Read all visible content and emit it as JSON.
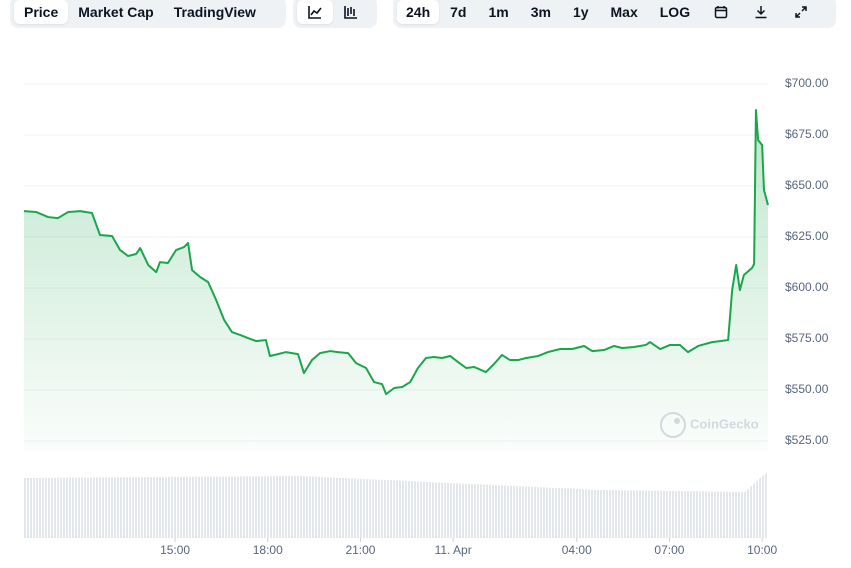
{
  "toolbar": {
    "tabs": [
      "Price",
      "Market Cap",
      "TradingView"
    ],
    "ranges": [
      "24h",
      "7d",
      "1m",
      "3m",
      "1y",
      "Max",
      "LOG"
    ]
  },
  "chart_data": {
    "type": "line",
    "watermark": "CoinGecko",
    "color": "#1aa64a",
    "x": [
      10.11,
      10.5,
      10.89,
      11.21,
      11.54,
      11.93,
      12.31,
      12.57,
      12.96,
      13.22,
      13.48,
      13.74,
      13.87,
      14.13,
      14.39,
      14.51,
      14.77,
      15.03,
      15.29,
      15.42,
      15.55,
      15.81,
      16.07,
      16.33,
      16.59,
      16.84,
      17.1,
      17.36,
      17.62,
      17.94,
      18.07,
      18.33,
      18.59,
      18.98,
      19.17,
      19.43,
      19.69,
      20.02,
      20.27,
      20.6,
      20.86,
      21.18,
      21.44,
      21.7,
      21.83,
      22.09,
      22.35,
      22.61,
      22.86,
      23.12,
      23.38,
      23.64,
      23.9,
      24.16,
      24.42,
      24.68,
      25.06,
      25.32,
      25.58,
      25.84,
      26.1,
      26.36,
      26.75,
      27.07,
      27.46,
      27.85,
      28.24,
      28.5,
      28.88,
      29.21,
      29.47,
      29.85,
      30.24,
      30.37,
      30.7,
      31.02,
      31.34,
      31.6,
      31.93,
      32.38,
      32.9,
      33.03,
      33.16,
      33.28,
      33.41,
      33.67,
      33.74,
      33.8,
      33.87,
      34.0,
      34.06,
      34.19
    ],
    "values": [
      637.7,
      637.3,
      634.8,
      634.3,
      637.3,
      637.7,
      636.8,
      626.0,
      625.5,
      618.6,
      615.7,
      616.7,
      619.6,
      611.3,
      607.8,
      612.7,
      612.3,
      618.6,
      620.1,
      622.1,
      608.8,
      605.4,
      602.9,
      594.1,
      584.3,
      578.4,
      577.0,
      575.5,
      574.0,
      574.5,
      566.7,
      567.6,
      568.6,
      567.6,
      558.3,
      564.7,
      568.1,
      569.1,
      568.6,
      568.1,
      563.2,
      560.8,
      553.9,
      552.9,
      548.0,
      551.0,
      551.5,
      553.9,
      560.8,
      565.7,
      566.2,
      565.7,
      566.7,
      563.7,
      560.8,
      561.3,
      558.8,
      562.7,
      567.2,
      564.7,
      564.7,
      565.7,
      566.7,
      568.6,
      570.1,
      570.1,
      571.6,
      569.1,
      569.6,
      571.6,
      570.6,
      571.1,
      572.1,
      573.5,
      570.1,
      572.1,
      572.1,
      568.6,
      571.6,
      573.5,
      574.5,
      599.0,
      611.3,
      599.0,
      606.4,
      609.8,
      611.8,
      687.3,
      672.5,
      670.1,
      648.0,
      640.7
    ],
    "xlim": [
      10.11,
      34.19
    ],
    "xticks": [
      {
        "value": 15,
        "label": "15:00"
      },
      {
        "value": 18,
        "label": "18:00"
      },
      {
        "value": 21,
        "label": "21:00"
      },
      {
        "value": 24,
        "label": "11. Apr"
      },
      {
        "value": 28,
        "label": "04:00"
      },
      {
        "value": 31,
        "label": "07:00"
      },
      {
        "value": 34,
        "label": "10:00"
      }
    ],
    "ylim": [
      520.6,
      711.8
    ],
    "yticks": [
      {
        "value": 525,
        "label": "$525.00"
      },
      {
        "value": 550,
        "label": "$550.00"
      },
      {
        "value": 575,
        "label": "$575.00"
      },
      {
        "value": 600,
        "label": "$600.00"
      },
      {
        "value": 625,
        "label": "$625.00"
      },
      {
        "value": 650,
        "label": "$650.00"
      },
      {
        "value": 675,
        "label": "$675.00"
      },
      {
        "value": 700,
        "label": "$700.00"
      }
    ],
    "grid": true
  }
}
